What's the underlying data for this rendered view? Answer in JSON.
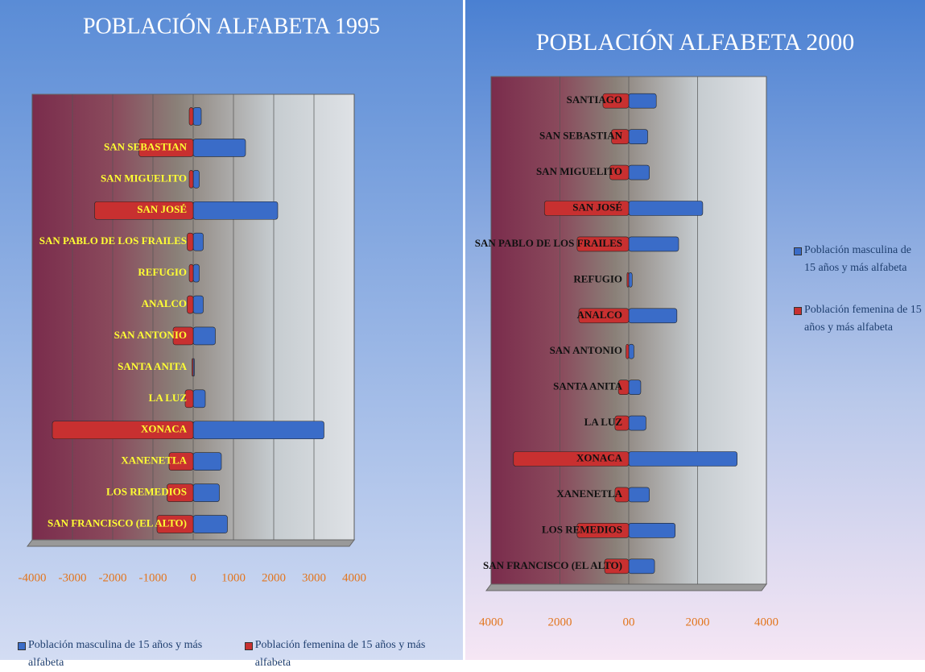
{
  "chart_data": [
    {
      "type": "bar",
      "orientation": "horizontal",
      "title": "POBLACIÓN ALFABETA 1995",
      "categories": [
        null,
        "SAN SEBASTIAN",
        "SAN MIGUELITO",
        "SAN JOSÉ",
        "SAN PABLO DE LOS FRAILES",
        "REFUGIO",
        "ANALCO",
        "SAN ANTONIO",
        "SANTA ANITA",
        "LA LUZ",
        "XONACA",
        "XANENETLA",
        "LOS REMEDIOS",
        "SAN FRANCISCO (EL ALTO)"
      ],
      "series": [
        {
          "name": "Población masculina de 15 años y más alfabeta",
          "color": "#3a6cc8",
          "values": [
            200,
            1300,
            150,
            2100,
            250,
            150,
            250,
            550,
            30,
            300,
            3250,
            700,
            650,
            850
          ]
        },
        {
          "name": "Población femenina de 15 años y más alfabeta",
          "color": "#c83030",
          "values": [
            -100,
            -1350,
            -100,
            -2450,
            -150,
            -100,
            -150,
            -500,
            -30,
            -200,
            -3500,
            -600,
            -650,
            -900
          ]
        }
      ],
      "xlim": [
        -4000,
        4000
      ],
      "xticks": [
        -4000,
        -3000,
        -2000,
        -1000,
        0,
        1000,
        2000,
        3000,
        4000
      ],
      "grid": true,
      "legend": "bottom"
    },
    {
      "type": "bar",
      "orientation": "horizontal",
      "title": "POBLACIÓN ALFABETA 2000",
      "categories": [
        "SANTIAGO",
        "SAN SEBASTIAN",
        "SAN MIGUELITO",
        "SAN JOSÉ",
        "SAN PABLO DE LOS FRAILES",
        "REFUGIO",
        "ANALCO",
        "SAN ANTONIO",
        "SANTA ANITA",
        "LA LUZ",
        "XONACA",
        "XANENETLA",
        "LOS REMEDIOS",
        "SAN FRANCISCO (EL ALTO)"
      ],
      "series": [
        {
          "name": "Población masculina de 15 años y más alfabeta",
          "color": "#3a6cc8",
          "values": [
            800,
            550,
            600,
            2150,
            1450,
            100,
            1400,
            150,
            350,
            500,
            3150,
            600,
            1350,
            750
          ]
        },
        {
          "name": "Población femenina de 15 años y más alfabeta",
          "color": "#c83030",
          "values": [
            -750,
            -500,
            -550,
            -2450,
            -1500,
            -50,
            -1450,
            -80,
            -300,
            -400,
            -3350,
            -400,
            -1500,
            -700
          ]
        }
      ],
      "xlim": [
        -4000,
        4000
      ],
      "xticks": [
        {
          "value": -4000,
          "label": "4000"
        },
        {
          "value": -2000,
          "label": "2000"
        },
        {
          "value": 0,
          "label": "00"
        },
        2000,
        4000
      ],
      "grid": true,
      "legend": "right"
    }
  ]
}
